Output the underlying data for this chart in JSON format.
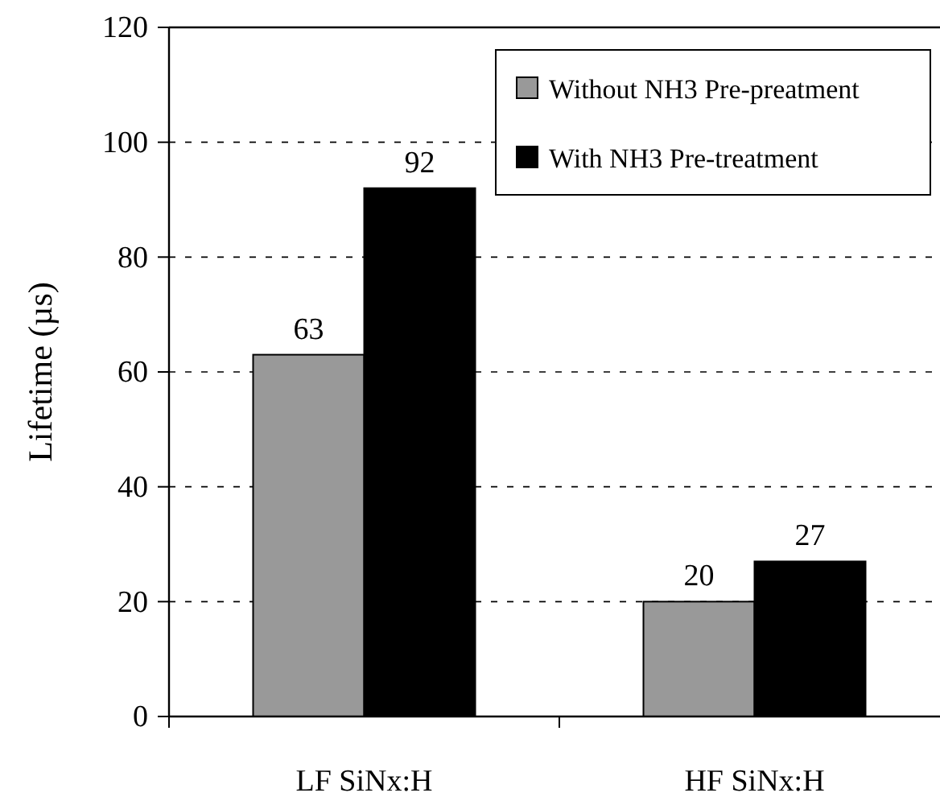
{
  "chart_data": {
    "type": "bar",
    "ylabel": "Lifetime (µs)",
    "categories": [
      "LF SiNx:H",
      "HF SiNx:H"
    ],
    "series": [
      {
        "name": "Without NH3 Pre-preatment",
        "color": "#999999",
        "values": [
          63,
          20
        ]
      },
      {
        "name": "With NH3 Pre-treatment",
        "color": "#000000",
        "values": [
          92,
          27
        ]
      }
    ],
    "ylim": [
      0,
      120
    ],
    "yticks": [
      0,
      20,
      40,
      60,
      80,
      100,
      120
    ],
    "grid": "y",
    "legend": "top right",
    "data_labels": true
  }
}
